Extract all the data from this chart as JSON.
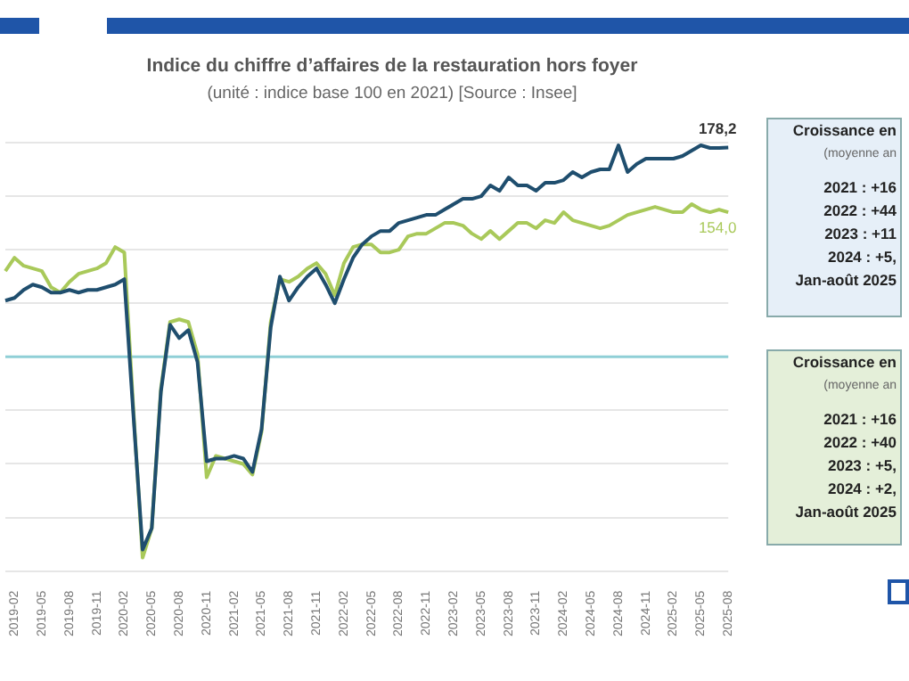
{
  "chart_data": {
    "type": "line",
    "title": "Indice du chiffre d’affaires de la restauration hors foyer",
    "subtitle": "(unité : indice base 100 en 2021) [Source : Insee]",
    "categories": [
      null,
      "2019-02",
      null,
      null,
      "2019-05",
      null,
      null,
      "2019-08",
      null,
      null,
      "2019-11",
      null,
      null,
      "2020-02",
      null,
      null,
      "2020-05",
      null,
      null,
      "2020-08",
      null,
      null,
      "2020-11",
      null,
      null,
      "2021-02",
      null,
      null,
      "2021-05",
      null,
      null,
      "2021-08",
      null,
      null,
      "2021-11",
      null,
      null,
      "2022-02",
      null,
      null,
      "2022-05",
      null,
      null,
      "2022-08",
      null,
      null,
      "2022-11",
      null,
      null,
      "2023-02",
      null,
      null,
      "2023-05",
      null,
      null,
      "2023-08",
      null,
      null,
      "2023-11",
      null,
      null,
      "2024-02",
      null,
      null,
      "2024-05",
      null,
      null,
      "2024-08",
      null,
      null,
      "2024-11",
      null,
      null,
      "2025-02",
      null,
      null,
      "2025-05",
      null,
      null,
      "2025-08"
    ],
    "series": [
      {
        "color": "#1f4e6e",
        "values": [
          121,
          122,
          125,
          127,
          126,
          124,
          124,
          125,
          124,
          125,
          125,
          126,
          127,
          129,
          78,
          28,
          36,
          87,
          112,
          107,
          110,
          98,
          61,
          62,
          62,
          63,
          62,
          57,
          73,
          111,
          130,
          121,
          126,
          130,
          133,
          127,
          120,
          129,
          137,
          142,
          145,
          147,
          147,
          150,
          151,
          152,
          153,
          153,
          155,
          157,
          159,
          159,
          160,
          164,
          162,
          167,
          164,
          164,
          162,
          165,
          165,
          166,
          169,
          167,
          169,
          170,
          170,
          179,
          169,
          172,
          174,
          174,
          174,
          174,
          175,
          177,
          179,
          178,
          178,
          178.2
        ],
        "value_labels": [
          null,
          null,
          null,
          null,
          null,
          null,
          null,
          null,
          null,
          null,
          null,
          null,
          null,
          null,
          null,
          null,
          null,
          null,
          null,
          null,
          null,
          null,
          null,
          null,
          null,
          null,
          null,
          null,
          null,
          null,
          null,
          null,
          null,
          null,
          null,
          null,
          null,
          null,
          null,
          null,
          null,
          null,
          null,
          null,
          null,
          null,
          null,
          null,
          null,
          null,
          null,
          null,
          null,
          null,
          null,
          null,
          null,
          null,
          null,
          null,
          null,
          null,
          null,
          null,
          null,
          null,
          null,
          null,
          null,
          null,
          null,
          null,
          null,
          null,
          null,
          null,
          null,
          null,
          null,
          "178,2"
        ]
      },
      {
        "color": "#a9c95a",
        "values": [
          132,
          137,
          134,
          133,
          132,
          126,
          124,
          128,
          131,
          132,
          133,
          135,
          141,
          139,
          80,
          25,
          36,
          88,
          113,
          114,
          113,
          101,
          55,
          63,
          62,
          61,
          60,
          56,
          72,
          113,
          129,
          128,
          130,
          133,
          135,
          131,
          123,
          135,
          141,
          142,
          142,
          139,
          139,
          140,
          145,
          146,
          146,
          148,
          150,
          150,
          149,
          146,
          144,
          147,
          144,
          147,
          150,
          150,
          148,
          151,
          150,
          154,
          151,
          150,
          149,
          148,
          149,
          151,
          153,
          154,
          155,
          156,
          155,
          154,
          154,
          157,
          155,
          154,
          155,
          154.0
        ],
        "value_labels": [
          null,
          null,
          null,
          null,
          null,
          null,
          null,
          null,
          null,
          null,
          null,
          null,
          null,
          null,
          null,
          null,
          null,
          null,
          null,
          null,
          null,
          null,
          null,
          null,
          null,
          null,
          null,
          null,
          null,
          null,
          null,
          null,
          null,
          null,
          null,
          null,
          null,
          null,
          null,
          null,
          null,
          null,
          null,
          null,
          null,
          null,
          null,
          null,
          null,
          null,
          null,
          null,
          null,
          null,
          null,
          null,
          null,
          null,
          null,
          null,
          null,
          null,
          null,
          null,
          null,
          null,
          null,
          null,
          null,
          null,
          null,
          null,
          null,
          null,
          null,
          null,
          null,
          null,
          null,
          "154,0"
        ]
      }
    ],
    "ylim": [
      20,
      180
    ],
    "yticks": [
      20,
      40,
      60,
      80,
      100,
      120,
      140,
      160,
      180
    ],
    "grid": "y",
    "tick_labels": "x",
    "line_style": "solid",
    "ref_lines": [
      {
        "axis": "y",
        "value": 100,
        "color": "#8fcfd6"
      }
    ],
    "annotations": [
      "Croissance en",
      "(moyenne an",
      "2021 : +16",
      "2022 : +44",
      "2023 : +11",
      "2024 : +5,",
      "Jan-août 2025",
      "Croissance en",
      "(moyenne an",
      "2021 : +16",
      "2022 : +40",
      "2023 : +5,",
      "2024 : +2,",
      "Jan-août 2025"
    ]
  }
}
